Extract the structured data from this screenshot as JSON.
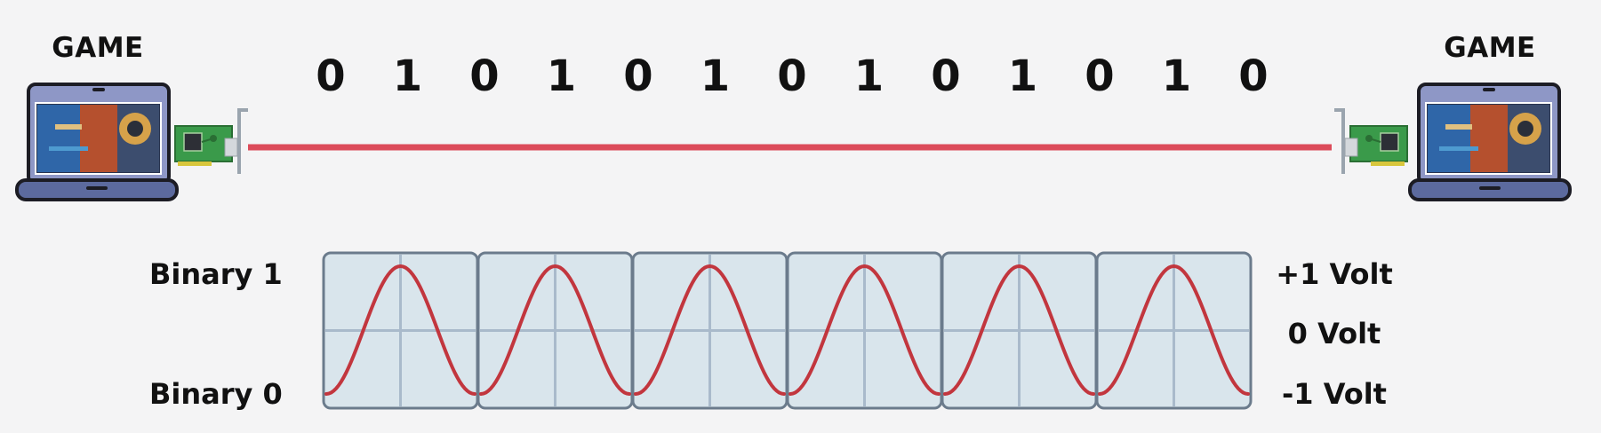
{
  "devices": {
    "left_label": "GAME",
    "right_label": "GAME"
  },
  "bits": [
    "0",
    "1",
    "0",
    "1",
    "0",
    "1",
    "0",
    "1",
    "0",
    "1",
    "0",
    "1",
    "0"
  ],
  "colors": {
    "cable": "#dc4b5a",
    "wave": "#c2363e",
    "panel_fill": "#d9e5ec",
    "panel_border": "#6b7b8c",
    "grid": "#a9bacb",
    "laptop_body": "#5c6a9e",
    "laptop_frame": "#8e97c6",
    "nic_board": "#3a9a4a"
  },
  "signal": {
    "binary_1_label": "Binary 1",
    "binary_0_label": "Binary 0",
    "plus_volt_label": "+1 Volt",
    "zero_volt_label": "0 Volt",
    "minus_volt_label": "-1 Volt",
    "periods": 6
  }
}
